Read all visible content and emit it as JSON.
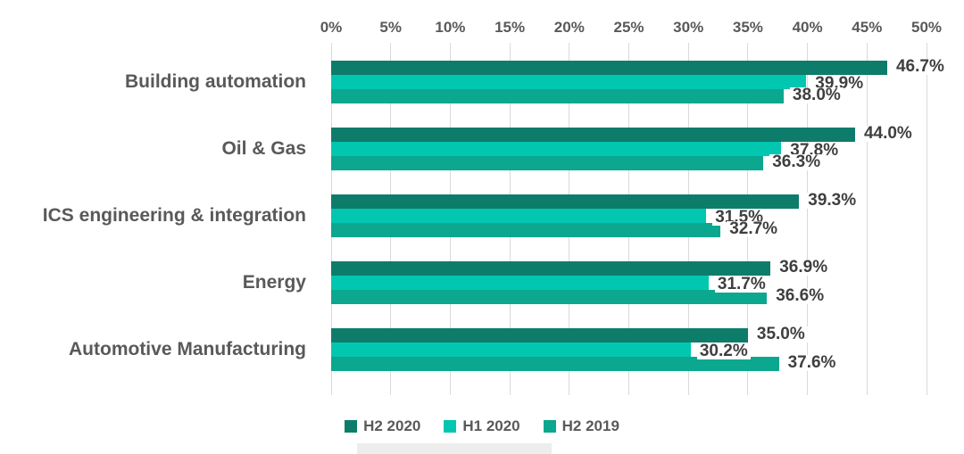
{
  "chart_data": {
    "type": "bar",
    "orientation": "horizontal",
    "categories": [
      "Building automation",
      "Oil & Gas",
      "ICS engineering & integration",
      "Energy",
      "Automotive Manufacturing"
    ],
    "series": [
      {
        "name": "H2 2020",
        "color": "#0e7c6b",
        "values": [
          46.7,
          44.0,
          39.3,
          36.9,
          35.0
        ],
        "labels": [
          "46.7%",
          "44.0%",
          "39.3%",
          "36.9%",
          "35.0%"
        ]
      },
      {
        "name": "H1 2020",
        "color": "#02c7b0",
        "values": [
          39.9,
          37.8,
          31.5,
          31.7,
          30.2
        ],
        "labels": [
          "39.9%",
          "37.8%",
          "31.5%",
          "31.7%",
          "30.2%"
        ]
      },
      {
        "name": "H2 2019",
        "color": "#0ba78f",
        "values": [
          38.0,
          36.3,
          32.7,
          36.6,
          37.6
        ],
        "labels": [
          "38.0%",
          "36.3%",
          "32.7%",
          "36.6%",
          "37.6%"
        ]
      }
    ],
    "x_axis": {
      "position": "top",
      "min": 0,
      "max": 50,
      "tick_labels": [
        "0%",
        "5%",
        "10%",
        "15%",
        "20%",
        "25%",
        "30%",
        "35%",
        "40%",
        "45%",
        "50%"
      ]
    },
    "grid": true,
    "legend": {
      "position": "bottom",
      "items": [
        "H2 2020",
        "H1 2020",
        "H2 2019"
      ]
    }
  },
  "colors": {
    "series_h2_2020": "#0e7c6b",
    "series_h1_2020": "#02c7b0",
    "series_h2_2019": "#0ba78f",
    "grid": "#d9d9d9",
    "axis_text": "#595959",
    "category_text": "#595959",
    "data_label_text": "#3f3f3f",
    "background": "#ffffff",
    "artifact": "#ededed"
  }
}
